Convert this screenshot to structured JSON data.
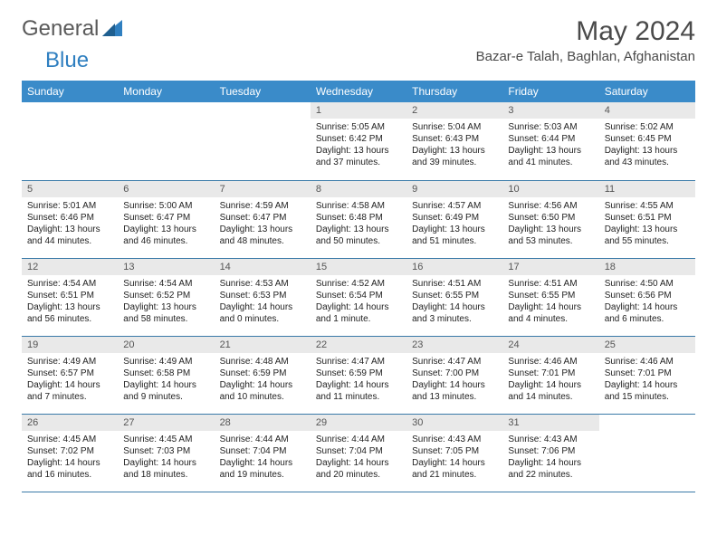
{
  "brand": {
    "part1": "General",
    "part2": "Blue"
  },
  "title": "May 2024",
  "location": "Bazar-e Talah, Baghlan, Afghanistan",
  "colors": {
    "header_bg": "#3a8bc9",
    "header_text": "#ffffff",
    "daynum_bg": "#e9e9e9",
    "row_border": "#3a7aa8",
    "brand_gray": "#5a5a5a",
    "brand_blue": "#2f7fc0"
  },
  "weekdays": [
    "Sunday",
    "Monday",
    "Tuesday",
    "Wednesday",
    "Thursday",
    "Friday",
    "Saturday"
  ],
  "weeks": [
    [
      null,
      null,
      null,
      {
        "n": "1",
        "sr": "Sunrise: 5:05 AM",
        "ss": "Sunset: 6:42 PM",
        "d1": "Daylight: 13 hours",
        "d2": "and 37 minutes."
      },
      {
        "n": "2",
        "sr": "Sunrise: 5:04 AM",
        "ss": "Sunset: 6:43 PM",
        "d1": "Daylight: 13 hours",
        "d2": "and 39 minutes."
      },
      {
        "n": "3",
        "sr": "Sunrise: 5:03 AM",
        "ss": "Sunset: 6:44 PM",
        "d1": "Daylight: 13 hours",
        "d2": "and 41 minutes."
      },
      {
        "n": "4",
        "sr": "Sunrise: 5:02 AM",
        "ss": "Sunset: 6:45 PM",
        "d1": "Daylight: 13 hours",
        "d2": "and 43 minutes."
      }
    ],
    [
      {
        "n": "5",
        "sr": "Sunrise: 5:01 AM",
        "ss": "Sunset: 6:46 PM",
        "d1": "Daylight: 13 hours",
        "d2": "and 44 minutes."
      },
      {
        "n": "6",
        "sr": "Sunrise: 5:00 AM",
        "ss": "Sunset: 6:47 PM",
        "d1": "Daylight: 13 hours",
        "d2": "and 46 minutes."
      },
      {
        "n": "7",
        "sr": "Sunrise: 4:59 AM",
        "ss": "Sunset: 6:47 PM",
        "d1": "Daylight: 13 hours",
        "d2": "and 48 minutes."
      },
      {
        "n": "8",
        "sr": "Sunrise: 4:58 AM",
        "ss": "Sunset: 6:48 PM",
        "d1": "Daylight: 13 hours",
        "d2": "and 50 minutes."
      },
      {
        "n": "9",
        "sr": "Sunrise: 4:57 AM",
        "ss": "Sunset: 6:49 PM",
        "d1": "Daylight: 13 hours",
        "d2": "and 51 minutes."
      },
      {
        "n": "10",
        "sr": "Sunrise: 4:56 AM",
        "ss": "Sunset: 6:50 PM",
        "d1": "Daylight: 13 hours",
        "d2": "and 53 minutes."
      },
      {
        "n": "11",
        "sr": "Sunrise: 4:55 AM",
        "ss": "Sunset: 6:51 PM",
        "d1": "Daylight: 13 hours",
        "d2": "and 55 minutes."
      }
    ],
    [
      {
        "n": "12",
        "sr": "Sunrise: 4:54 AM",
        "ss": "Sunset: 6:51 PM",
        "d1": "Daylight: 13 hours",
        "d2": "and 56 minutes."
      },
      {
        "n": "13",
        "sr": "Sunrise: 4:54 AM",
        "ss": "Sunset: 6:52 PM",
        "d1": "Daylight: 13 hours",
        "d2": "and 58 minutes."
      },
      {
        "n": "14",
        "sr": "Sunrise: 4:53 AM",
        "ss": "Sunset: 6:53 PM",
        "d1": "Daylight: 14 hours",
        "d2": "and 0 minutes."
      },
      {
        "n": "15",
        "sr": "Sunrise: 4:52 AM",
        "ss": "Sunset: 6:54 PM",
        "d1": "Daylight: 14 hours",
        "d2": "and 1 minute."
      },
      {
        "n": "16",
        "sr": "Sunrise: 4:51 AM",
        "ss": "Sunset: 6:55 PM",
        "d1": "Daylight: 14 hours",
        "d2": "and 3 minutes."
      },
      {
        "n": "17",
        "sr": "Sunrise: 4:51 AM",
        "ss": "Sunset: 6:55 PM",
        "d1": "Daylight: 14 hours",
        "d2": "and 4 minutes."
      },
      {
        "n": "18",
        "sr": "Sunrise: 4:50 AM",
        "ss": "Sunset: 6:56 PM",
        "d1": "Daylight: 14 hours",
        "d2": "and 6 minutes."
      }
    ],
    [
      {
        "n": "19",
        "sr": "Sunrise: 4:49 AM",
        "ss": "Sunset: 6:57 PM",
        "d1": "Daylight: 14 hours",
        "d2": "and 7 minutes."
      },
      {
        "n": "20",
        "sr": "Sunrise: 4:49 AM",
        "ss": "Sunset: 6:58 PM",
        "d1": "Daylight: 14 hours",
        "d2": "and 9 minutes."
      },
      {
        "n": "21",
        "sr": "Sunrise: 4:48 AM",
        "ss": "Sunset: 6:59 PM",
        "d1": "Daylight: 14 hours",
        "d2": "and 10 minutes."
      },
      {
        "n": "22",
        "sr": "Sunrise: 4:47 AM",
        "ss": "Sunset: 6:59 PM",
        "d1": "Daylight: 14 hours",
        "d2": "and 11 minutes."
      },
      {
        "n": "23",
        "sr": "Sunrise: 4:47 AM",
        "ss": "Sunset: 7:00 PM",
        "d1": "Daylight: 14 hours",
        "d2": "and 13 minutes."
      },
      {
        "n": "24",
        "sr": "Sunrise: 4:46 AM",
        "ss": "Sunset: 7:01 PM",
        "d1": "Daylight: 14 hours",
        "d2": "and 14 minutes."
      },
      {
        "n": "25",
        "sr": "Sunrise: 4:46 AM",
        "ss": "Sunset: 7:01 PM",
        "d1": "Daylight: 14 hours",
        "d2": "and 15 minutes."
      }
    ],
    [
      {
        "n": "26",
        "sr": "Sunrise: 4:45 AM",
        "ss": "Sunset: 7:02 PM",
        "d1": "Daylight: 14 hours",
        "d2": "and 16 minutes."
      },
      {
        "n": "27",
        "sr": "Sunrise: 4:45 AM",
        "ss": "Sunset: 7:03 PM",
        "d1": "Daylight: 14 hours",
        "d2": "and 18 minutes."
      },
      {
        "n": "28",
        "sr": "Sunrise: 4:44 AM",
        "ss": "Sunset: 7:04 PM",
        "d1": "Daylight: 14 hours",
        "d2": "and 19 minutes."
      },
      {
        "n": "29",
        "sr": "Sunrise: 4:44 AM",
        "ss": "Sunset: 7:04 PM",
        "d1": "Daylight: 14 hours",
        "d2": "and 20 minutes."
      },
      {
        "n": "30",
        "sr": "Sunrise: 4:43 AM",
        "ss": "Sunset: 7:05 PM",
        "d1": "Daylight: 14 hours",
        "d2": "and 21 minutes."
      },
      {
        "n": "31",
        "sr": "Sunrise: 4:43 AM",
        "ss": "Sunset: 7:06 PM",
        "d1": "Daylight: 14 hours",
        "d2": "and 22 minutes."
      },
      null
    ]
  ]
}
